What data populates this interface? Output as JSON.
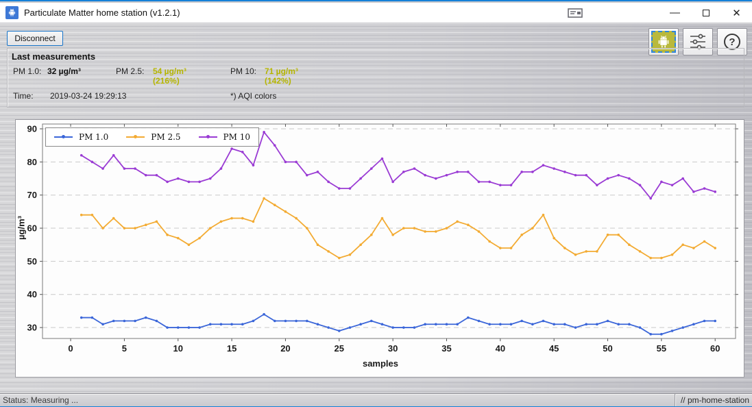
{
  "window": {
    "title": "Particulate Matter home station (v1.2.1)",
    "minimize_glyph": "—",
    "close_glyph": "✕"
  },
  "toolbar": {
    "disconnect_label": "Disconnect",
    "help_glyph": "?"
  },
  "measurements": {
    "title": "Last measurements",
    "aqi_color": "#b5b500",
    "pm1": {
      "label": "PM 1.0:",
      "value": "32 µg/m³"
    },
    "pm25": {
      "label": "PM 2.5:",
      "value": "54 µg/m³",
      "percent": "(216%)"
    },
    "pm10": {
      "label": "PM 10:",
      "value": "71 µg/m³",
      "percent": "(142%)"
    },
    "time": {
      "label": "Time:",
      "value": "2019-03-24 19:29:13"
    },
    "aqi_note": "*) AQI colors"
  },
  "chart_data": {
    "type": "line",
    "xlabel": "samples",
    "ylabel": "µg/m³",
    "xticks": [
      0,
      5,
      10,
      15,
      20,
      25,
      30,
      35,
      40,
      45,
      50,
      55,
      60
    ],
    "yticks": [
      30,
      40,
      50,
      60,
      70,
      80,
      90
    ],
    "xlim": [
      -2.62,
      61.9
    ],
    "ylim": [
      26.7,
      91.45
    ],
    "grid": "horizontal-dashed",
    "legend_position": "top-left",
    "x": [
      1,
      2,
      3,
      4,
      5,
      6,
      7,
      8,
      9,
      10,
      11,
      12,
      13,
      14,
      15,
      16,
      17,
      18,
      19,
      20,
      21,
      22,
      23,
      24,
      25,
      26,
      27,
      28,
      29,
      30,
      31,
      32,
      33,
      34,
      35,
      36,
      37,
      38,
      39,
      40,
      41,
      42,
      43,
      44,
      45,
      46,
      47,
      48,
      49,
      50,
      51,
      52,
      53,
      54,
      55,
      56,
      57,
      58,
      59,
      60
    ],
    "series": [
      {
        "name": "PM 1.0",
        "color": "#3b66d9",
        "values": [
          33,
          33,
          31,
          32,
          32,
          32,
          33,
          32,
          30,
          30,
          30,
          30,
          31,
          31,
          31,
          31,
          32,
          34,
          32,
          32,
          32,
          32,
          31,
          30,
          29,
          30,
          31,
          32,
          31,
          30,
          30,
          30,
          31,
          31,
          31,
          31,
          33,
          32,
          31,
          31,
          31,
          32,
          31,
          32,
          31,
          31,
          30,
          31,
          31,
          32,
          31,
          31,
          30,
          28,
          28,
          29,
          30,
          31,
          32,
          32
        ]
      },
      {
        "name": "PM 2.5",
        "color": "#f3ab33",
        "values": [
          64,
          64,
          60,
          63,
          60,
          60,
          61,
          62,
          58,
          57,
          55,
          57,
          60,
          62,
          63,
          63,
          62,
          69,
          67,
          65,
          63,
          60,
          55,
          53,
          51,
          52,
          55,
          58,
          63,
          58,
          60,
          60,
          59,
          59,
          60,
          62,
          61,
          59,
          56,
          54,
          54,
          58,
          60,
          64,
          57,
          54,
          52,
          53,
          53,
          58,
          58,
          55,
          53,
          51,
          51,
          52,
          55,
          54,
          56,
          54
        ]
      },
      {
        "name": "PM 10",
        "color": "#9a3bd4",
        "values": [
          82,
          80,
          78,
          82,
          78,
          78,
          76,
          76,
          74,
          75,
          74,
          74,
          75,
          78,
          84,
          83,
          79,
          89,
          85,
          80,
          80,
          76,
          77,
          74,
          72,
          72,
          75,
          78,
          81,
          74,
          77,
          78,
          76,
          75,
          76,
          77,
          77,
          74,
          74,
          73,
          73,
          77,
          77,
          79,
          78,
          77,
          76,
          76,
          73,
          75,
          76,
          75,
          73,
          69,
          74,
          73,
          75,
          71,
          72,
          71
        ]
      }
    ]
  },
  "statusbar": {
    "status": "Status: Measuring ...",
    "right": "// pm-home-station"
  }
}
